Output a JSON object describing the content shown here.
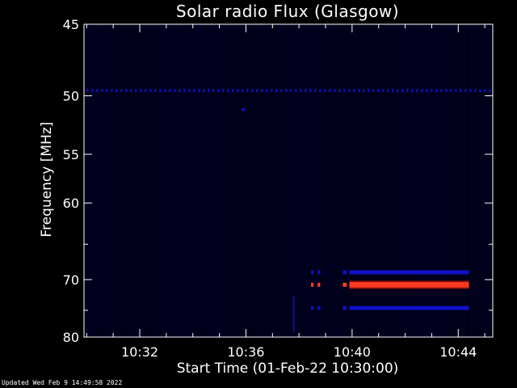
{
  "chart_data": {
    "type": "heatmap",
    "title": "Solar radio Flux (Glasgow)",
    "xlabel": "Start Time (01-Feb-22 10:30:00)",
    "ylabel": "Frequency [MHz]",
    "x_unit": "minutes after 10:30:00",
    "xlim": [
      -0.1,
      15.3
    ],
    "ylim": [
      80,
      45
    ],
    "y_scale": "reciprocal",
    "x_ticks": [
      {
        "value": 2,
        "label": "10:32"
      },
      {
        "value": 6,
        "label": "10:36"
      },
      {
        "value": 10,
        "label": "10:40"
      },
      {
        "value": 14,
        "label": "10:44"
      }
    ],
    "y_ticks": [
      {
        "value": 45,
        "label": "45"
      },
      {
        "value": 50,
        "label": "50"
      },
      {
        "value": 55,
        "label": "55"
      },
      {
        "value": 60,
        "label": "60"
      },
      {
        "value": 70,
        "label": "70"
      },
      {
        "value": 80,
        "label": "80"
      }
    ],
    "colors": {
      "background": "#00001a",
      "weak": "#1010c8",
      "strong": "#ff3a20",
      "axis": "#ffffff"
    },
    "features": [
      {
        "kind": "dotted-band",
        "freq_mhz": 49.6,
        "x_start": 0.0,
        "x_end": 15.3,
        "intensity": "weak"
      },
      {
        "kind": "spot",
        "freq_mhz": 51.1,
        "x": 5.9,
        "intensity": "weak"
      },
      {
        "kind": "dashes",
        "freq_mhz": 68.9,
        "x_starts": [
          8.45,
          8.7,
          9.65
        ],
        "x_ends": [
          8.55,
          8.8,
          9.8
        ],
        "intensity": "weak"
      },
      {
        "kind": "band",
        "freq_mhz": 68.9,
        "x_start": 9.9,
        "x_end": 14.4,
        "intensity": "weak"
      },
      {
        "kind": "dashes",
        "freq_mhz": 70.8,
        "x_starts": [
          8.45,
          8.7,
          9.65
        ],
        "x_ends": [
          8.55,
          8.8,
          9.8
        ],
        "intensity": "strong"
      },
      {
        "kind": "band",
        "freq_mhz": 70.8,
        "x_start": 9.9,
        "x_end": 14.4,
        "intensity": "strong"
      },
      {
        "kind": "dashes",
        "freq_mhz": 74.6,
        "x_starts": [
          8.45,
          8.7,
          9.65
        ],
        "x_ends": [
          8.55,
          8.8,
          9.8
        ],
        "intensity": "weak"
      },
      {
        "kind": "band",
        "freq_mhz": 74.6,
        "x_start": 9.9,
        "x_end": 14.4,
        "intensity": "weak"
      },
      {
        "kind": "streak",
        "freq_start_mhz": 72.5,
        "freq_end_mhz": 79,
        "x": 7.8,
        "intensity": "weak"
      }
    ]
  },
  "footer": "Updated Wed Feb  9 14:49:58 2022"
}
